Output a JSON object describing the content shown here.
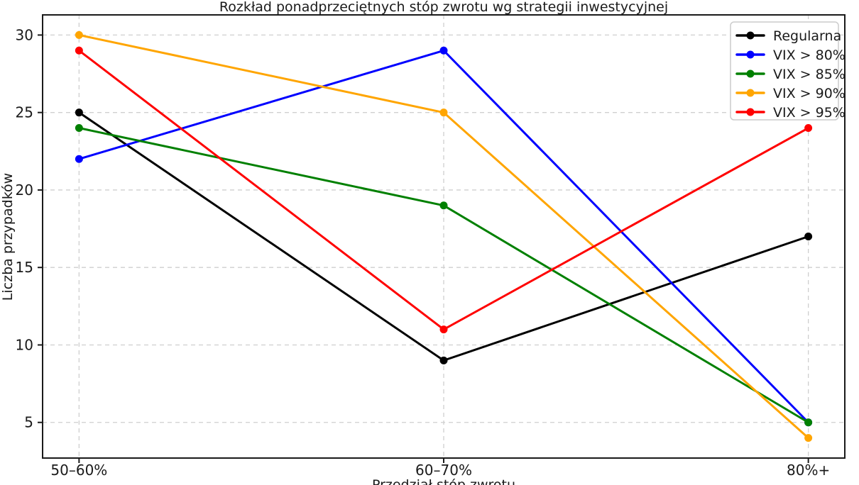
{
  "chart_data": {
    "type": "line",
    "title": "Rozkład ponadprzeciętnych stóp zwrotu wg strategii inwestycyjnej",
    "xlabel": "Przedział stóp zwrotu",
    "ylabel": "Liczba przypadków",
    "categories": [
      "50–60%",
      "60–70%",
      "80%+"
    ],
    "series": [
      {
        "name": "Regularna",
        "color": "#000000",
        "values": [
          25,
          9,
          17
        ]
      },
      {
        "name": "VIX > 80%",
        "color": "#0000ff",
        "values": [
          22,
          29,
          5
        ]
      },
      {
        "name": "VIX > 85%",
        "color": "#008000",
        "values": [
          24,
          19,
          5
        ]
      },
      {
        "name": "VIX > 90%",
        "color": "#ffa500",
        "values": [
          30,
          25,
          4
        ]
      },
      {
        "name": "VIX > 95%",
        "color": "#ff0000",
        "values": [
          29,
          11,
          24
        ]
      }
    ],
    "yticks": [
      5,
      10,
      15,
      20,
      25,
      30
    ],
    "ylim": [
      2.7,
      31.3
    ],
    "grid": true,
    "grid_style": "dashed",
    "grid_color": "#cfcfcf",
    "spine_color": "#1a1a1a",
    "background_color": "#ffffff",
    "legend_position": "upper right"
  }
}
